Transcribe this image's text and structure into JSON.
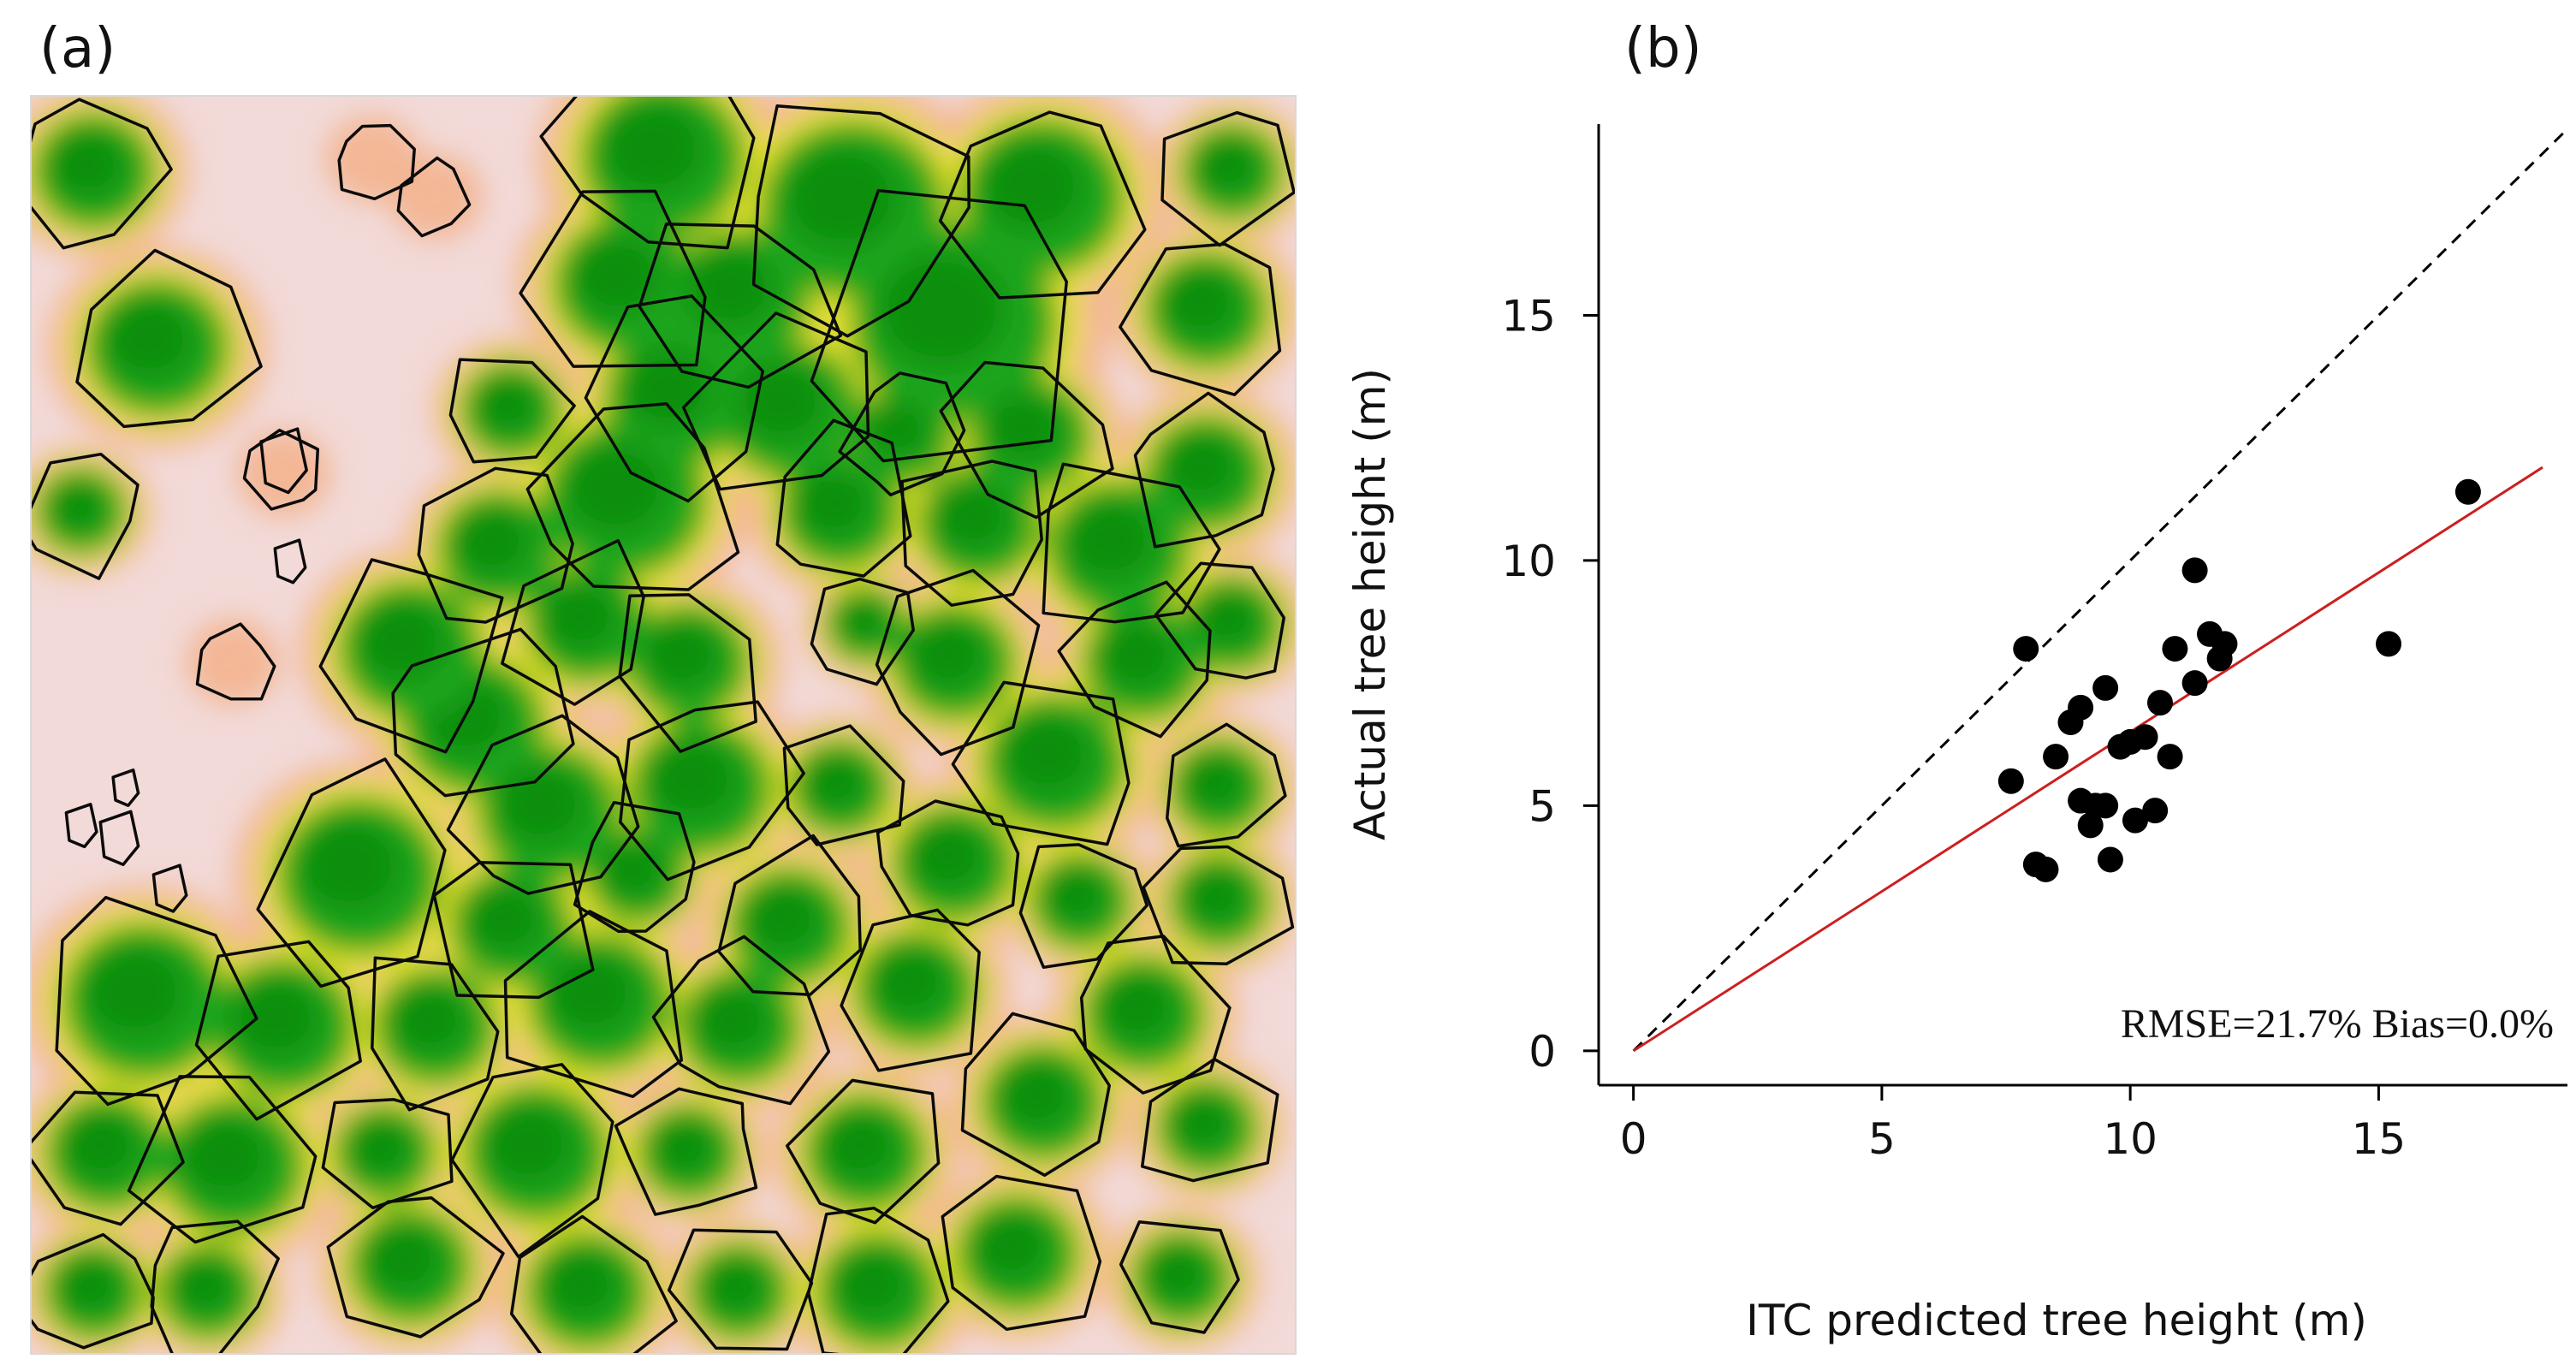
{
  "figure": {
    "panel_a_label": "(a)",
    "panel_b_label": "(b)"
  },
  "panel_a": {
    "colors": {
      "bare": "#f2dad8",
      "low": "#f3b48f",
      "mid": "#e8e22a",
      "canopy": "#1fa51f",
      "dense": "#0a8f10",
      "outline": "#0b0b0b"
    }
  },
  "chart_data": {
    "type": "scatter",
    "title": "",
    "xlabel": "ITC predicted tree height (m)",
    "ylabel": "Actual tree height (m)",
    "xlim": [
      -0.7,
      18.8
    ],
    "ylim": [
      -0.7,
      18.9
    ],
    "xticks": [
      0,
      5,
      10,
      15
    ],
    "yticks": [
      0,
      5,
      10,
      15
    ],
    "series": [
      {
        "name": "trees",
        "points": [
          [
            7.6,
            5.5
          ],
          [
            7.9,
            8.2
          ],
          [
            8.1,
            3.8
          ],
          [
            8.3,
            3.7
          ],
          [
            8.5,
            6.0
          ],
          [
            8.8,
            6.7
          ],
          [
            9.0,
            7.0
          ],
          [
            9.0,
            5.1
          ],
          [
            9.2,
            4.6
          ],
          [
            9.3,
            5.0
          ],
          [
            9.5,
            7.4
          ],
          [
            9.5,
            5.0
          ],
          [
            9.6,
            3.9
          ],
          [
            9.8,
            6.2
          ],
          [
            10.0,
            6.3
          ],
          [
            10.1,
            4.7
          ],
          [
            10.3,
            6.4
          ],
          [
            10.5,
            4.9
          ],
          [
            10.6,
            7.1
          ],
          [
            10.8,
            6.0
          ],
          [
            10.9,
            8.2
          ],
          [
            11.3,
            9.8
          ],
          [
            11.3,
            7.5
          ],
          [
            11.6,
            8.5
          ],
          [
            11.8,
            8.0
          ],
          [
            11.9,
            8.3
          ],
          [
            15.2,
            8.3
          ],
          [
            16.8,
            11.4
          ]
        ],
        "color": "#000000"
      },
      {
        "name": "1:1 line",
        "points": [
          [
            0,
            0
          ],
          [
            18.8,
            18.8
          ]
        ],
        "style": "dashed",
        "color": "#000000"
      },
      {
        "name": "fit line",
        "points": [
          [
            0,
            0
          ],
          [
            18.3,
            11.9
          ]
        ],
        "style": "solid",
        "color": "#cc1f1f"
      }
    ],
    "annotation": "RMSE=21.7% Bias=0.0%"
  }
}
